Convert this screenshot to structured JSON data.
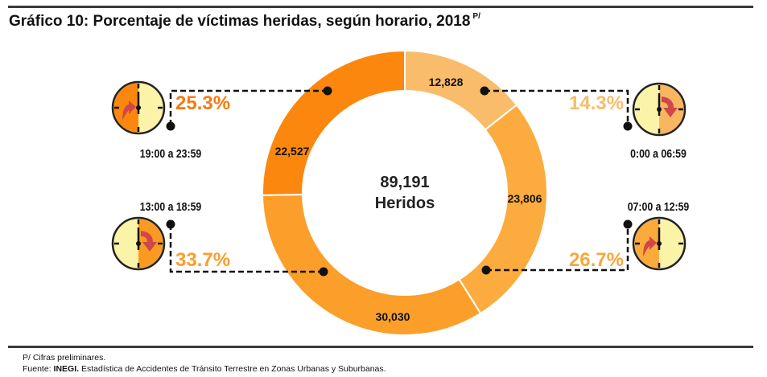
{
  "header": {
    "title": "Gráfico 10: Porcentaje de víctimas heridas, según horario, 2018",
    "title_superscript": "P/"
  },
  "footer": {
    "note": "P/ Cifras preliminares.",
    "source_prefix": "Fuente:",
    "source_org": "INEGI.",
    "source_text": "Estadística de Accidentes de Tránsito Terrestre en Zonas Urbanas y Suburbanas."
  },
  "chart_data": {
    "type": "pie",
    "subtype": "donut",
    "title": "Gráfico 10: Porcentaje de víctimas heridas, según horario, 2018",
    "center_label": {
      "value": "89,191",
      "text": "Heridos"
    },
    "total": 89191,
    "direction": "clockwise-from-top",
    "segments": [
      {
        "id": "s0",
        "range": "0:00 a 06:59",
        "value": 12828,
        "value_label": "12,828",
        "percent": 14.3,
        "percent_label": "14.3%",
        "color": "#F9BC6B",
        "percent_color": "#F9BC6B",
        "clock_arrow": "down",
        "clock_fill_side": "right",
        "clock_fill": "#F9B560"
      },
      {
        "id": "s1",
        "range": "07:00 a 12:59",
        "value": 23806,
        "value_label": "23,806",
        "percent": 26.7,
        "percent_label": "26.7%",
        "color": "#FCAC3E",
        "percent_color": "#F8A83A",
        "clock_arrow": "up",
        "clock_fill_side": "left",
        "clock_fill": "#FBAA3C"
      },
      {
        "id": "s2",
        "range": "13:00 a 18:59",
        "value": 30030,
        "value_label": "30,030",
        "percent": 33.7,
        "percent_label": "33.7%",
        "color": "#FB9F2A",
        "percent_color": "#FB9F2A",
        "clock_arrow": "down",
        "clock_fill_side": "right",
        "clock_fill": "#FB9A22"
      },
      {
        "id": "s3",
        "range": "19:00 a 23:59",
        "value": 22527,
        "value_label": "22,527",
        "percent": 25.3,
        "percent_label": "25.3%",
        "color": "#FC870E",
        "percent_color": "#F77A10",
        "clock_arrow": "up",
        "clock_fill_side": "left",
        "clock_fill": "#FC870E"
      }
    ],
    "colors": {
      "clock_face": "#FBF4A8",
      "arrow": "#D0474A",
      "leader": "#111111"
    }
  }
}
